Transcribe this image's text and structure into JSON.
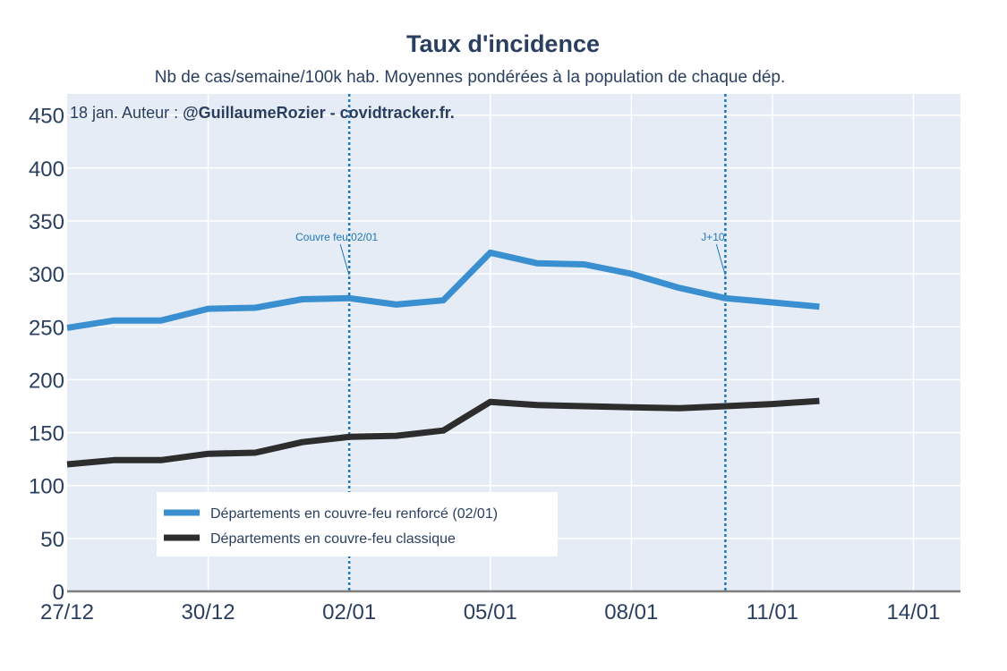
{
  "chart_data": {
    "type": "line",
    "title": "Taux d'incidence",
    "subtitle": "Nb de cas/semaine/100k hab. Moyennes pondérées à la population de chaque dép.",
    "credit_prefix": "18 jan. Auteur : ",
    "credit_bold": "@GuillaumeRozier - covidtracker.fr.",
    "xlim": [
      0,
      19
    ],
    "ylim": [
      0,
      470
    ],
    "x_ticks": [
      {
        "x": 0,
        "label": "27/12"
      },
      {
        "x": 3,
        "label": "30/12"
      },
      {
        "x": 6,
        "label": "02/01"
      },
      {
        "x": 9,
        "label": "05/01"
      },
      {
        "x": 12,
        "label": "08/01"
      },
      {
        "x": 15,
        "label": "11/01"
      },
      {
        "x": 18,
        "label": "14/01"
      }
    ],
    "y_ticks": [
      0,
      50,
      100,
      150,
      200,
      250,
      300,
      350,
      400,
      450
    ],
    "x": [
      0,
      1,
      2,
      3,
      4,
      5,
      6,
      7,
      8,
      9,
      10,
      11,
      12,
      13,
      14,
      15,
      16
    ],
    "series": [
      {
        "name": "Départements en couvre-feu renforcé (02/01)",
        "color": "#3a8fd1",
        "values": [
          249,
          256,
          256,
          267,
          268,
          276,
          277,
          271,
          275,
          320,
          310,
          309,
          300,
          287,
          277,
          273,
          269
        ]
      },
      {
        "name": "Départements en couvre-feu classique",
        "color": "#2d2d2d",
        "values": [
          120,
          124,
          124,
          130,
          131,
          141,
          146,
          147,
          152,
          179,
          176,
          175,
          174,
          173,
          175,
          177,
          180
        ]
      }
    ],
    "vlines": [
      {
        "x": 6,
        "label": "Couvre feu 02/01",
        "color": "#1f77b4"
      },
      {
        "x": 14,
        "label": "J+10",
        "color": "#1f77b4"
      }
    ],
    "legend_position": "bottom-left",
    "grid": true
  }
}
